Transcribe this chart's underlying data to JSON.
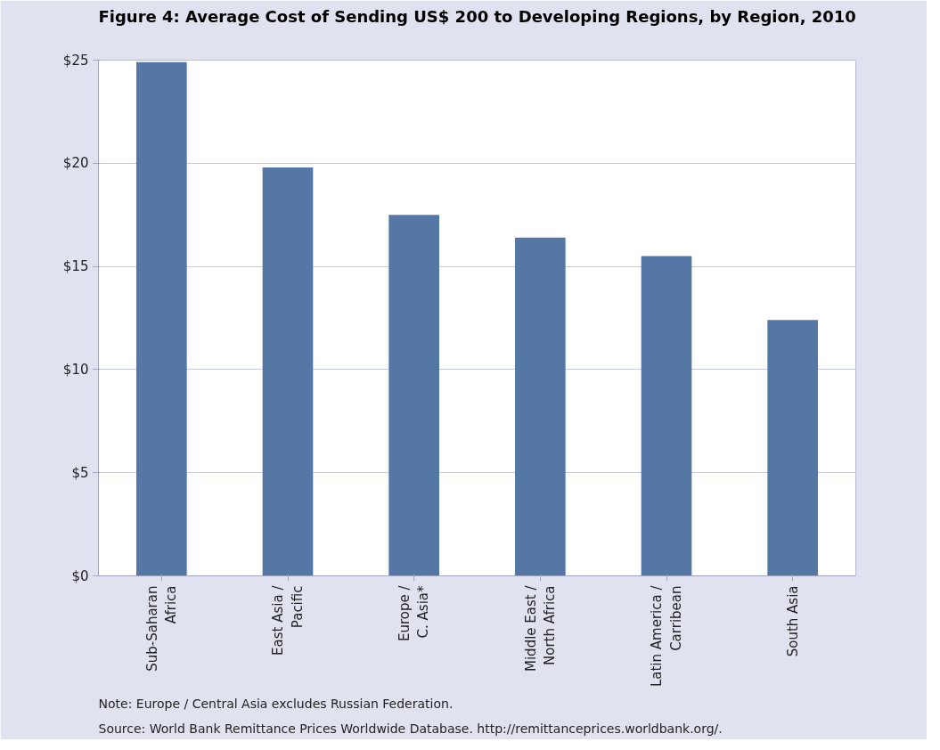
{
  "chart_data": {
    "type": "bar",
    "title": "Figure 4: Average Cost of Sending US$ 200 to Developing Regions, by Region, 2010",
    "categories": [
      "Sub-Saharan\nAfrica",
      "East Asia /\nPacific",
      "Europe /\nC. Asia*",
      "Middle East /\nNorth Africa",
      "Latin America /\nCarribean",
      "South Asia"
    ],
    "values": [
      24.9,
      19.8,
      17.5,
      16.4,
      15.5,
      12.4
    ],
    "color": "#5477a5",
    "ylim": [
      0,
      25
    ],
    "yticks": [
      {
        "value": 0,
        "label": "$0"
      },
      {
        "value": 5,
        "label": "$5"
      },
      {
        "value": 10,
        "label": "$10"
      },
      {
        "value": 15,
        "label": "$15"
      },
      {
        "value": 20,
        "label": "$20"
      },
      {
        "value": 25,
        "label": "$25"
      }
    ],
    "grid": "y",
    "annotations": [
      "Note: Europe / Central Asia excludes Russian Federation.",
      "Source: World Bank Remittance Prices Worldwide Database. http://remittanceprices.worldbank.org/."
    ]
  }
}
